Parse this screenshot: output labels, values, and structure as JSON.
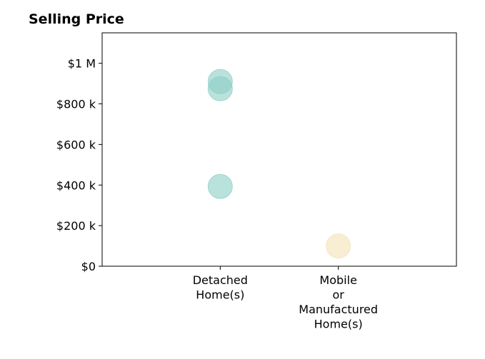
{
  "chart_data": {
    "type": "scatter",
    "title": "Selling Price",
    "xlabel": "",
    "ylabel": "",
    "categories": [
      [
        "Detached",
        "Home(s)"
      ],
      [
        "Mobile",
        "or",
        "Manufactured",
        "Home(s)"
      ]
    ],
    "y_ticks": [
      {
        "value": 0,
        "label": "$0"
      },
      {
        "value": 200000,
        "label": "$200 k"
      },
      {
        "value": 400000,
        "label": "$400 k"
      },
      {
        "value": 600000,
        "label": "$600 k"
      },
      {
        "value": 800000,
        "label": "$800 k"
      },
      {
        "value": 1000000,
        "label": "$1 M"
      }
    ],
    "ylim": [
      0,
      1150000
    ],
    "xlim": [
      0,
      3
    ],
    "grid": false,
    "points": [
      {
        "category": 0,
        "value": 910000,
        "color": "#8ccfc7"
      },
      {
        "category": 0,
        "value": 875000,
        "color": "#8ccfc7"
      },
      {
        "category": 0,
        "value": 393000,
        "color": "#8ccfc7"
      },
      {
        "category": 1,
        "value": 100000,
        "color": "#f5e2b8"
      }
    ]
  }
}
